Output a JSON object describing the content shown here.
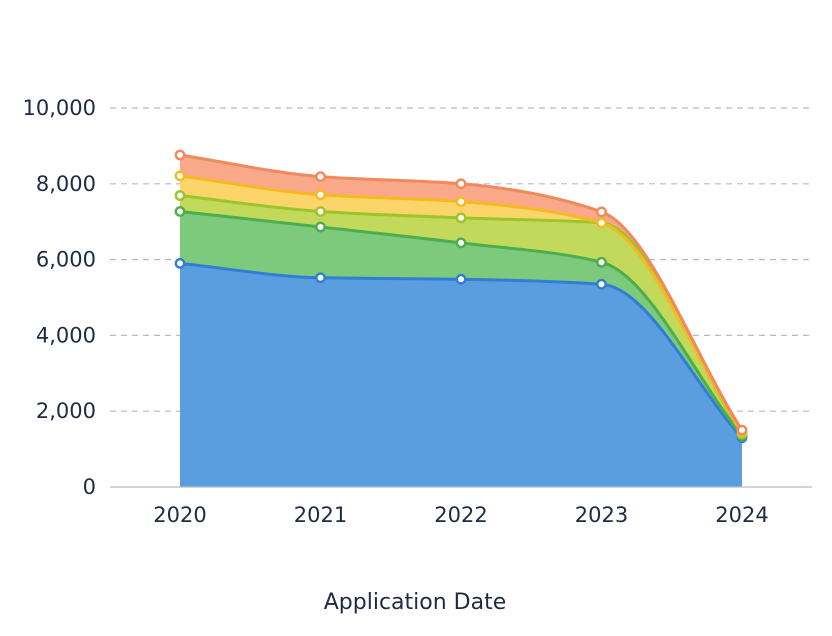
{
  "chart_data": {
    "type": "area",
    "stacked": true,
    "smooth": true,
    "xlabel": "Application Date",
    "ylabel": "",
    "x": [
      "2020",
      "2021",
      "2022",
      "2023",
      "2024"
    ],
    "ylim": [
      0,
      10000
    ],
    "yticks": [
      0,
      2000,
      4000,
      6000,
      8000,
      10000
    ],
    "ytick_labels": [
      "0",
      "2,000",
      "4,000",
      "6,000",
      "8,000",
      "10,000"
    ],
    "grid": "horizontal dashed",
    "series": [
      {
        "color": "#2f7fd4",
        "fill": "#5b9ee0",
        "values": [
          5900,
          5520,
          5480,
          5350,
          1300
        ]
      },
      {
        "color": "#4cae4c",
        "fill": "#7dca7d",
        "values": [
          1370,
          1340,
          960,
          580,
          50
        ]
      },
      {
        "color": "#9cc42b",
        "fill": "#c2d95c",
        "values": [
          420,
          410,
          660,
          1040,
          50
        ]
      },
      {
        "color": "#f5b921",
        "fill": "#fbd46a",
        "values": [
          520,
          440,
          430,
          0,
          50
        ]
      },
      {
        "color": "#f08a5d",
        "fill": "#f9a98a",
        "values": [
          550,
          480,
          470,
          290,
          50
        ]
      }
    ]
  }
}
